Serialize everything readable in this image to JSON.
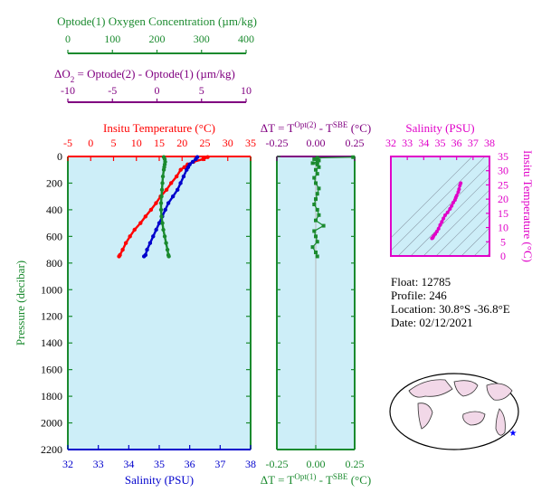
{
  "colors": {
    "oxygen": "#1a8a2e",
    "delta_o2": "#800080",
    "temperature": "#ff0000",
    "salinity": "#0000cc",
    "pressure": "#1a8a2e",
    "ts_magenta": "#e000c8",
    "panel_bg": "#cdeef8",
    "land": "#f2d8e8"
  },
  "info": {
    "float": "Float:  12785",
    "profile": "Profile:  246",
    "location": "Location:  30.8°S  -36.8°E",
    "date": "Date:  02/12/2021"
  },
  "chart_data": [
    {
      "type": "line",
      "panel": "profile",
      "axes": {
        "oxygen_top": {
          "title": "Optode(1) Oxygen Concentration (µm/kg)",
          "ticks": [
            0,
            100,
            200,
            300,
            400
          ],
          "range": [
            0,
            400
          ]
        },
        "delta_o2_top": {
          "title_parts": [
            "ΔO",
            "2",
            " = Optode(2) - Optode(1)      (µm/kg)"
          ],
          "ticks": [
            -10,
            -5,
            0,
            5,
            10
          ],
          "range": [
            -10,
            10
          ]
        },
        "temperature_top": {
          "title": "Insitu Temperature (°C)",
          "ticks": [
            -5,
            0,
            5,
            10,
            15,
            20,
            25,
            30,
            35
          ],
          "range": [
            -5,
            35
          ]
        },
        "salinity_bottom": {
          "title": "Salinity (PSU)",
          "ticks": [
            32,
            33,
            34,
            35,
            36,
            37,
            38
          ],
          "range": [
            32,
            38
          ]
        },
        "pressure_left": {
          "title": "Pressure (decibar)",
          "ticks": [
            0,
            200,
            400,
            600,
            800,
            1000,
            1200,
            1400,
            1600,
            1800,
            2000,
            2200
          ],
          "range": [
            0,
            2200
          ],
          "inverted": true
        }
      },
      "series": [
        {
          "key": "temperature",
          "axis": "temperature_top",
          "pressure": [
            5,
            20,
            40,
            60,
            80,
            100,
            150,
            200,
            250,
            300,
            350,
            400,
            450,
            500,
            550,
            600,
            650,
            700,
            740,
            750
          ],
          "values": [
            25.6,
            24.6,
            22.5,
            21.2,
            20.5,
            19.7,
            18.8,
            17.6,
            16.6,
            15.3,
            14.3,
            13.2,
            12.0,
            10.9,
            9.6,
            8.6,
            7.7,
            7.0,
            6.4,
            6.2
          ]
        },
        {
          "key": "salinity",
          "axis": "salinity_bottom",
          "pressure": [
            5,
            20,
            40,
            60,
            80,
            100,
            150,
            200,
            250,
            300,
            350,
            400,
            450,
            500,
            550,
            600,
            650,
            700,
            740,
            750
          ],
          "values": [
            36.25,
            36.2,
            36.1,
            36.0,
            35.95,
            35.9,
            35.8,
            35.7,
            35.6,
            35.45,
            35.3,
            35.2,
            35.1,
            35.0,
            34.9,
            34.8,
            34.7,
            34.6,
            34.55,
            34.5
          ]
        },
        {
          "key": "oxygen",
          "axis": "oxygen_top",
          "pressure": [
            5,
            20,
            40,
            60,
            80,
            100,
            150,
            200,
            250,
            300,
            350,
            400,
            450,
            500,
            550,
            600,
            650,
            700,
            740,
            750
          ],
          "values": [
            210,
            212,
            213,
            212,
            211,
            210,
            208,
            207,
            206,
            205,
            204,
            204,
            205,
            207,
            209,
            212,
            215,
            218,
            220,
            221
          ]
        }
      ]
    },
    {
      "type": "scatter",
      "panel": "delta_t",
      "top_title_parts": [
        "ΔT = T",
        "Opt(2)",
        " - T",
        "SBE",
        "  (°C)"
      ],
      "bottom_title_parts": [
        "ΔT = T",
        "Opt(1)",
        " - T",
        "SBE",
        "  (°C)"
      ],
      "ticks": [
        -0.25,
        0.0,
        0.25
      ],
      "tick_labels": [
        "-0.25",
        "0.00",
        "0.25"
      ],
      "range": [
        -0.25,
        0.25
      ],
      "pressure_range": [
        0,
        2200
      ],
      "series": [
        {
          "key": "delta_t",
          "pressure": [
            5,
            10,
            20,
            30,
            40,
            50,
            60,
            80,
            100,
            130,
            160,
            200,
            240,
            280,
            320,
            360,
            400,
            440,
            480,
            520,
            560,
            600,
            640,
            680,
            720,
            750
          ],
          "values": [
            0.24,
            0.01,
            -0.01,
            0.02,
            0.01,
            -0.02,
            0.01,
            0.02,
            0.0,
            0.01,
            -0.01,
            0.0,
            0.02,
            0.01,
            0.0,
            -0.01,
            0.01,
            0.02,
            0.0,
            0.05,
            -0.01,
            0.0,
            0.01,
            -0.02,
            0.0,
            0.01
          ]
        }
      ]
    },
    {
      "type": "line",
      "panel": "ts_diagram",
      "x_title": "Salinity (PSU)",
      "y_title": "Insitu Temperature (°C)",
      "x_ticks": [
        32,
        33,
        34,
        35,
        36,
        37,
        38
      ],
      "y_ticks": [
        0,
        5,
        10,
        15,
        20,
        25,
        30,
        35
      ],
      "x_range": [
        32,
        38
      ],
      "y_range": [
        0,
        35
      ],
      "series": [
        {
          "key": "ts",
          "salinity": [
            36.25,
            36.2,
            36.15,
            36.1,
            36.0,
            35.95,
            35.9,
            35.8,
            35.7,
            35.6,
            35.45,
            35.3,
            35.2,
            35.1,
            35.0,
            34.9,
            34.8,
            34.7,
            34.6,
            34.55,
            34.5
          ],
          "temperature": [
            25.6,
            24.8,
            23.5,
            22.5,
            21.2,
            20.5,
            19.7,
            18.8,
            17.6,
            16.6,
            15.3,
            14.3,
            13.2,
            12.0,
            10.9,
            9.6,
            8.6,
            7.7,
            7.0,
            6.4,
            6.2
          ]
        }
      ]
    }
  ]
}
